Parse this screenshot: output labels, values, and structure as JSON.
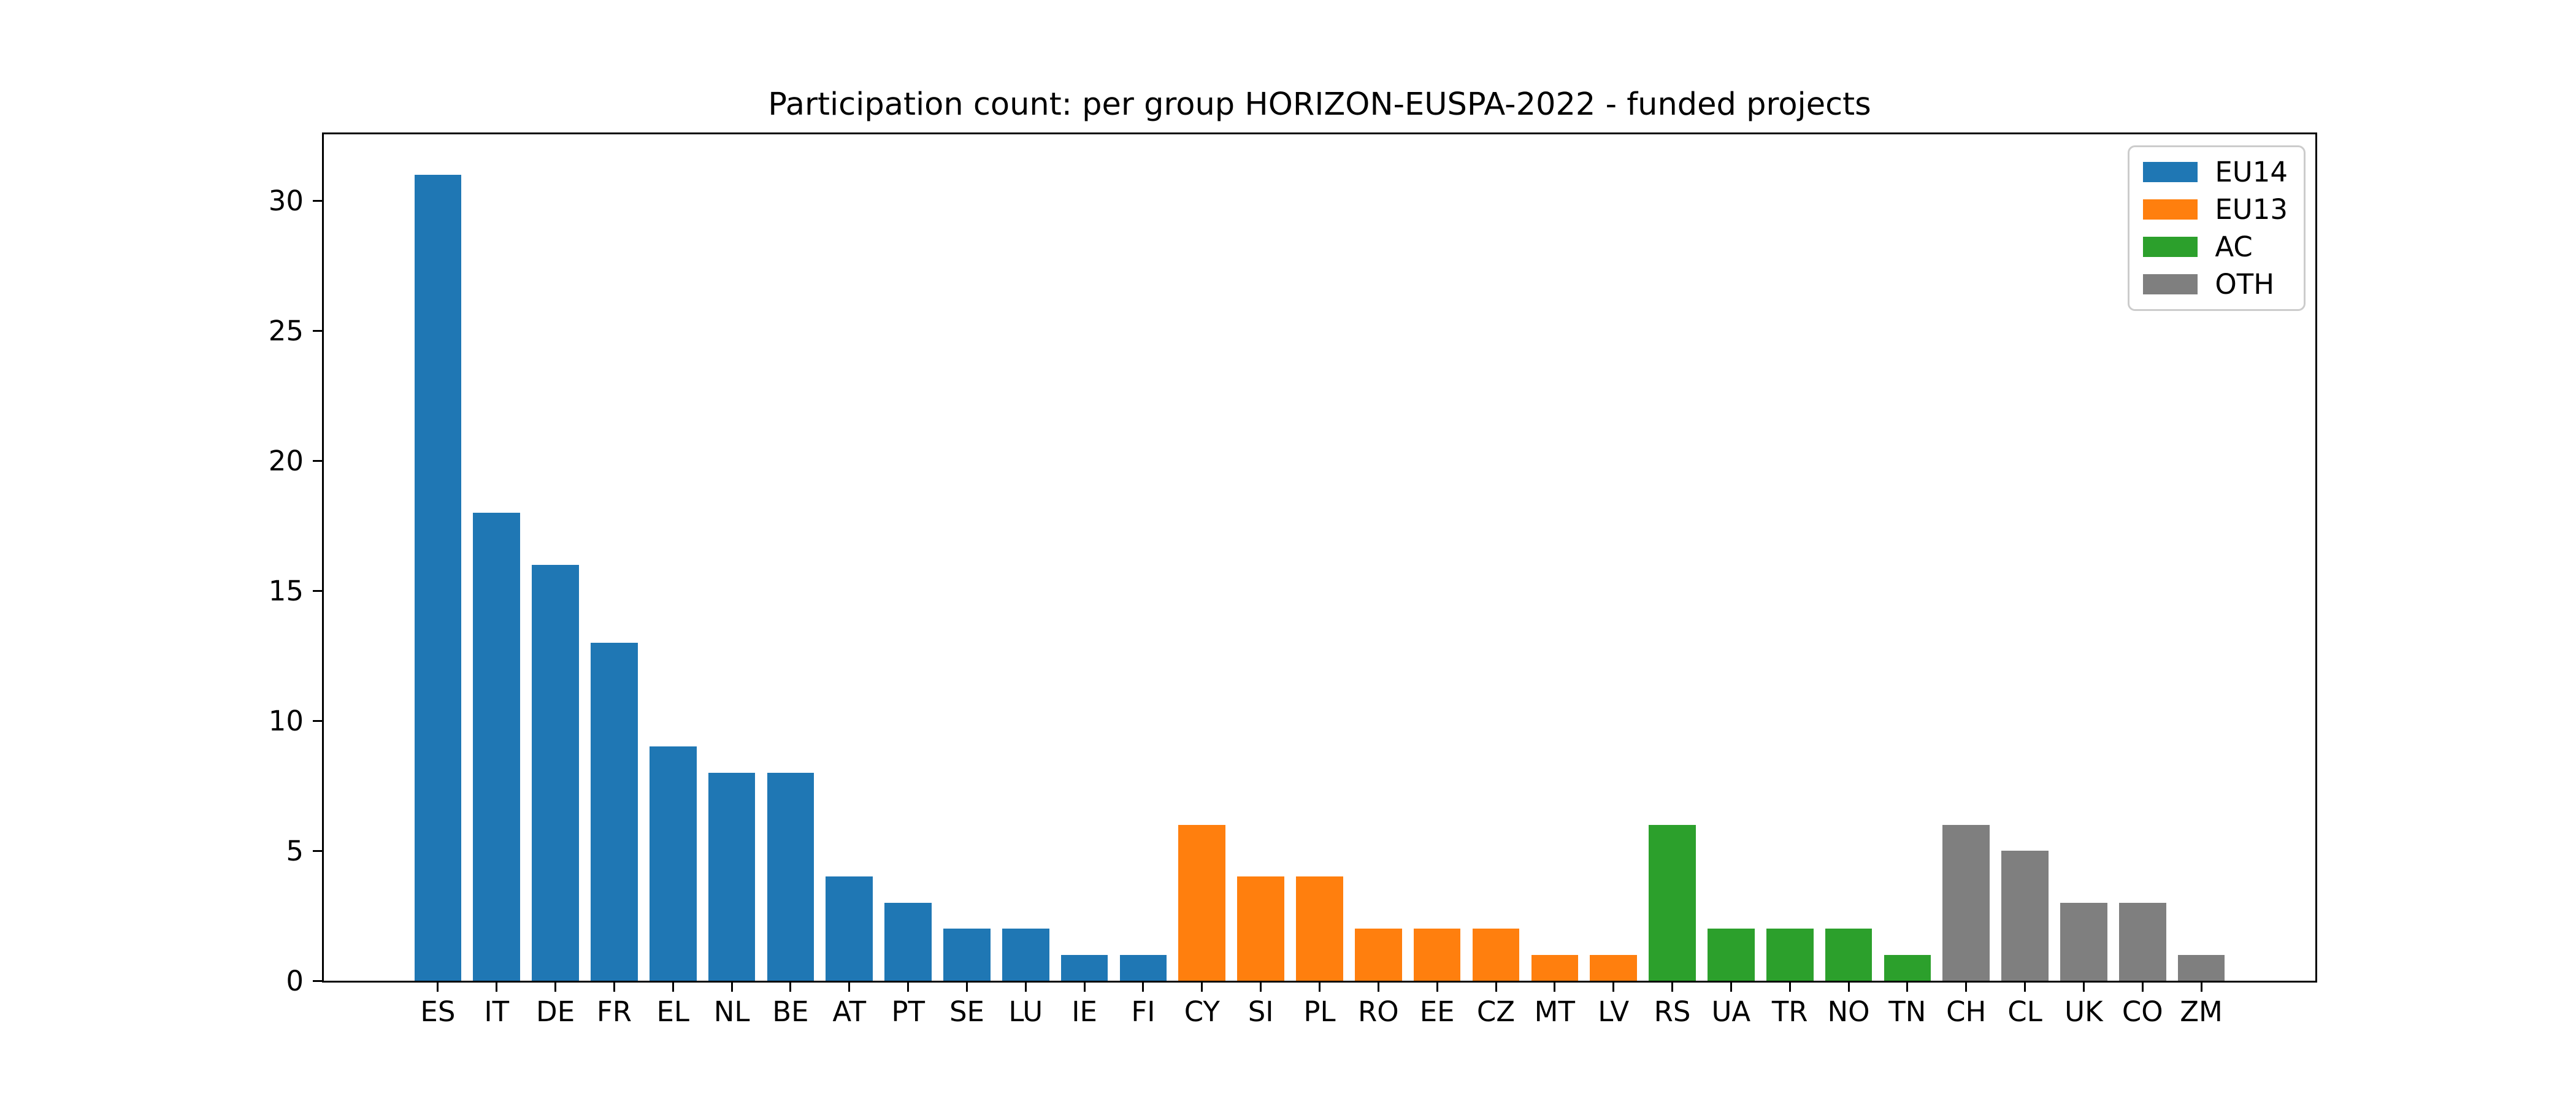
{
  "chart_data": {
    "type": "bar",
    "title": "Participation count: per group HORIZON-EUSPA-2022 - funded projects",
    "categories": [
      "ES",
      "IT",
      "DE",
      "FR",
      "EL",
      "NL",
      "BE",
      "AT",
      "PT",
      "SE",
      "LU",
      "IE",
      "FI",
      "CY",
      "SI",
      "PL",
      "RO",
      "EE",
      "CZ",
      "MT",
      "LV",
      "RS",
      "UA",
      "TR",
      "NO",
      "TN",
      "CH",
      "CL",
      "UK",
      "CO",
      "ZM"
    ],
    "values": [
      31,
      18,
      16,
      13,
      9,
      8,
      8,
      4,
      3,
      2,
      2,
      1,
      1,
      6,
      4,
      4,
      2,
      2,
      2,
      1,
      1,
      6,
      2,
      2,
      2,
      1,
      6,
      5,
      3,
      3,
      1
    ],
    "bar_groups": [
      "EU14",
      "EU14",
      "EU14",
      "EU14",
      "EU14",
      "EU14",
      "EU14",
      "EU14",
      "EU14",
      "EU14",
      "EU14",
      "EU14",
      "EU14",
      "EU13",
      "EU13",
      "EU13",
      "EU13",
      "EU13",
      "EU13",
      "EU13",
      "EU13",
      "AC",
      "AC",
      "AC",
      "AC",
      "AC",
      "OTH",
      "OTH",
      "OTH",
      "OTH",
      "OTH"
    ],
    "legend": [
      {
        "label": "EU14",
        "color": "#1f77b4"
      },
      {
        "label": "EU13",
        "color": "#ff7f0e"
      },
      {
        "label": "AC",
        "color": "#2ca02c"
      },
      {
        "label": "OTH",
        "color": "#7f7f7f"
      }
    ],
    "xlabel": "",
    "ylabel": "",
    "yticks": [
      0,
      5,
      10,
      15,
      20,
      25,
      30
    ],
    "ylim": [
      0,
      32.55
    ],
    "xlim": [
      -1.94,
      31.94
    ],
    "bar_width": 0.8,
    "grid": false,
    "legend_position": "upper right"
  }
}
